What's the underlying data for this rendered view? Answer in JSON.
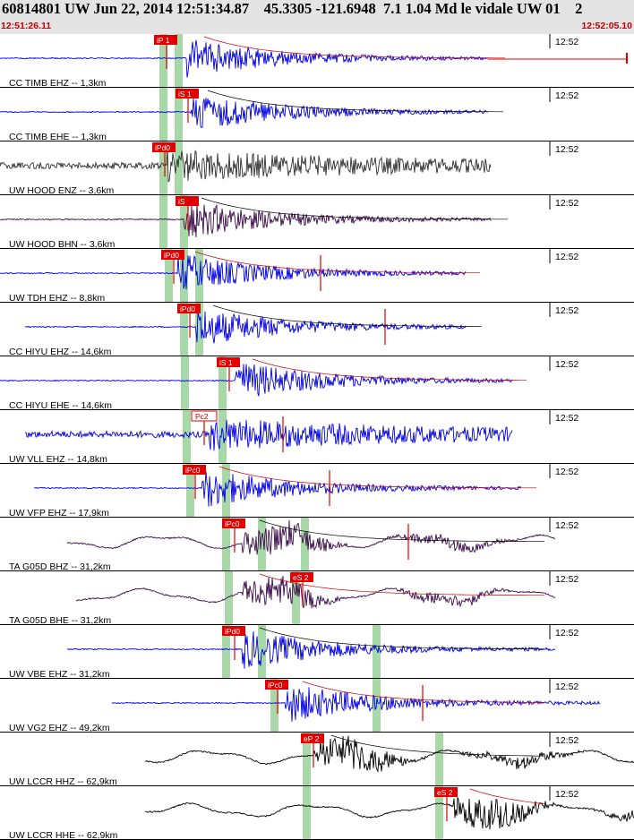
{
  "header": {
    "title": "60814801 UW Jun 22, 2014 12:51:34.87    45.3305 -121.6948  7.1 1.04 Md le vidale UW 01    2",
    "start_time": "12:51:26.11",
    "end_time": "12:52:05.10"
  },
  "colors": {
    "header_bg": "#e4e4e4",
    "time_text": "#c40000",
    "pick": "#e00000",
    "window": "#a8d8a8",
    "blue": "#0000e0",
    "purple": "#3a0b4a",
    "dark": "#303030",
    "black": "#000000",
    "decay": "#cc0000"
  },
  "traces": [
    {
      "label": "CC TIMB EHZ -- 1,3km",
      "time_tick": "12:52",
      "color": "blue",
      "style": "quake",
      "picks": [
        {
          "label": "iP 1",
          "type": "solid"
        }
      ]
    },
    {
      "label": "CC TIMB EHE -- 1,3km",
      "time_tick": "12:52",
      "color": "blue",
      "style": "quake",
      "picks": [
        {
          "label": "iS 1",
          "type": "solid"
        }
      ]
    },
    {
      "label": "UW HOOD ENZ -- 3,6km",
      "time_tick": "12:52",
      "color": "dark",
      "style": "noisy",
      "picks": [
        {
          "label": "iPd0",
          "type": "solid"
        }
      ]
    },
    {
      "label": "UW HOOD BHN -- 3,6km",
      "time_tick": "12:52",
      "color": "purple",
      "style": "quake",
      "picks": [
        {
          "label": "iS",
          "type": "solid"
        }
      ]
    },
    {
      "label": "UW TDH EHZ -- 8,8km",
      "time_tick": "12:52",
      "color": "blue",
      "style": "quake",
      "picks": [
        {
          "label": "iPd0",
          "type": "solid"
        }
      ]
    },
    {
      "label": "CC HIYU EHZ -- 14,6km",
      "time_tick": "12:52",
      "color": "blue",
      "style": "quake",
      "picks": [
        {
          "label": "iPd0",
          "type": "solid"
        }
      ]
    },
    {
      "label": "CC HIYU EHE -- 14,6km",
      "time_tick": "12:52",
      "color": "blue",
      "style": "quake",
      "picks": [
        {
          "label": "iS 1",
          "type": "solid"
        }
      ]
    },
    {
      "label": "UW VLL EHZ -- 14,8km",
      "time_tick": "12:52",
      "color": "blue",
      "style": "noisy",
      "picks": [
        {
          "label": "Pc2",
          "type": "outline"
        }
      ]
    },
    {
      "label": "UW VFP EHZ -- 17,9km",
      "time_tick": "12:52",
      "color": "blue",
      "style": "quake",
      "picks": [
        {
          "label": "iPc0",
          "type": "solid"
        }
      ]
    },
    {
      "label": "TA G05D BHZ -- 31,2km",
      "time_tick": "12:52",
      "color": "purple",
      "style": "wavy",
      "picks": [
        {
          "label": "iPc0",
          "type": "solid"
        }
      ]
    },
    {
      "label": "TA G05D BHE -- 31,2km",
      "time_tick": "12:52",
      "color": "purple",
      "style": "wavy",
      "picks": [
        {
          "label": "eS 2",
          "type": "solid"
        }
      ]
    },
    {
      "label": "UW VBE EHZ -- 31,2km",
      "time_tick": "12:52",
      "color": "blue",
      "style": "quake",
      "picks": [
        {
          "label": "iPd0",
          "type": "solid"
        }
      ]
    },
    {
      "label": "UW VG2 EHZ -- 49,2km",
      "time_tick": "12:52",
      "color": "blue",
      "style": "quake",
      "picks": [
        {
          "label": "iPc0",
          "type": "solid"
        }
      ]
    },
    {
      "label": "UW LCCR HHZ -- 62,9km",
      "time_tick": "12:52",
      "color": "black",
      "style": "wavy",
      "picks": [
        {
          "label": "eP 2",
          "type": "solid"
        }
      ]
    },
    {
      "label": "UW LCCR HHE -- 62,9km",
      "time_tick": "12:52",
      "color": "black",
      "style": "wavy",
      "picks": [
        {
          "label": "eS 2",
          "type": "solid"
        }
      ]
    }
  ]
}
